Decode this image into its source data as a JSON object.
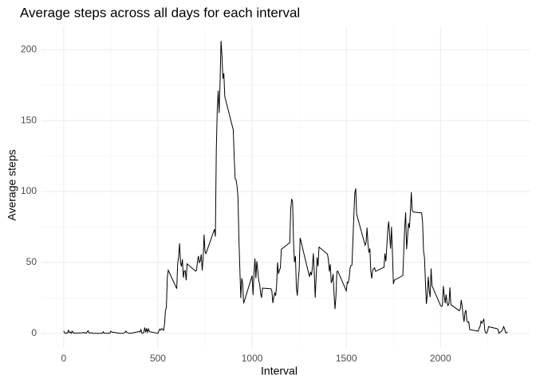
{
  "chart_data": {
    "type": "line",
    "title": "Average steps across all days for each interval",
    "xlabel": "Interval",
    "ylabel": "Average steps",
    "x": [
      0,
      5,
      10,
      15,
      20,
      25,
      30,
      35,
      40,
      45,
      50,
      55,
      100,
      105,
      110,
      115,
      120,
      125,
      130,
      135,
      140,
      145,
      150,
      155,
      200,
      205,
      210,
      215,
      220,
      225,
      230,
      235,
      240,
      245,
      250,
      255,
      300,
      305,
      310,
      315,
      320,
      325,
      330,
      335,
      340,
      345,
      350,
      355,
      400,
      405,
      410,
      415,
      420,
      425,
      430,
      435,
      440,
      445,
      450,
      455,
      500,
      505,
      510,
      515,
      520,
      525,
      530,
      535,
      540,
      545,
      550,
      555,
      600,
      605,
      610,
      615,
      620,
      625,
      630,
      635,
      640,
      645,
      650,
      655,
      700,
      705,
      710,
      715,
      720,
      725,
      730,
      735,
      740,
      745,
      750,
      755,
      800,
      805,
      810,
      815,
      820,
      825,
      830,
      835,
      840,
      845,
      850,
      855,
      900,
      905,
      910,
      915,
      920,
      925,
      930,
      935,
      940,
      945,
      950,
      955,
      1000,
      1005,
      1010,
      1015,
      1020,
      1025,
      1030,
      1035,
      1040,
      1045,
      1050,
      1055,
      1100,
      1105,
      1110,
      1115,
      1120,
      1125,
      1130,
      1135,
      1140,
      1145,
      1150,
      1155,
      1200,
      1205,
      1210,
      1215,
      1220,
      1225,
      1230,
      1235,
      1240,
      1245,
      1250,
      1255,
      1300,
      1305,
      1310,
      1315,
      1320,
      1325,
      1330,
      1335,
      1340,
      1345,
      1350,
      1355,
      1400,
      1405,
      1410,
      1415,
      1420,
      1425,
      1430,
      1435,
      1440,
      1445,
      1450,
      1455,
      1500,
      1505,
      1510,
      1515,
      1520,
      1525,
      1530,
      1535,
      1540,
      1545,
      1550,
      1555,
      1600,
      1605,
      1610,
      1615,
      1620,
      1625,
      1630,
      1635,
      1640,
      1645,
      1650,
      1655,
      1700,
      1705,
      1710,
      1715,
      1720,
      1725,
      1730,
      1735,
      1740,
      1745,
      1750,
      1755,
      1800,
      1805,
      1810,
      1815,
      1820,
      1825,
      1830,
      1835,
      1840,
      1845,
      1850,
      1855,
      1900,
      1905,
      1910,
      1915,
      1920,
      1925,
      1930,
      1935,
      1940,
      1945,
      1950,
      1955,
      2000,
      2005,
      2010,
      2015,
      2020,
      2025,
      2030,
      2035,
      2040,
      2045,
      2050,
      2055,
      2100,
      2105,
      2110,
      2115,
      2120,
      2125,
      2130,
      2135,
      2140,
      2145,
      2150,
      2155,
      2200,
      2205,
      2210,
      2215,
      2220,
      2225,
      2230,
      2235,
      2240,
      2245,
      2250,
      2255,
      2300,
      2305,
      2310,
      2315,
      2320,
      2325,
      2330,
      2335,
      2340,
      2345,
      2350,
      2355
    ],
    "values": [
      1.7,
      0.3,
      0.1,
      0.2,
      0.1,
      2.1,
      0.5,
      0.9,
      0,
      1.5,
      0.3,
      0.1,
      0.3,
      0.7,
      0.2,
      0.3,
      0,
      1.1,
      1.8,
      0.2,
      0.2,
      0.4,
      0.3,
      0,
      0,
      0,
      1.1,
      0,
      0,
      0.1,
      0,
      0.2,
      0,
      0,
      1.5,
      0.9,
      0,
      0,
      0,
      0,
      0.2,
      0.6,
      1.6,
      0.6,
      0.5,
      0.1,
      0,
      0,
      1.2,
      0.9,
      2.6,
      0,
      0.3,
      0.4,
      4.1,
      0.7,
      3.5,
      0.8,
      3.1,
      1.1,
      0,
      1.6,
      3,
      2.2,
      3.3,
      3,
      2.1,
      6.1,
      16,
      18.3,
      39.5,
      44.5,
      31.5,
      49.3,
      53.8,
      63.5,
      50,
      47.1,
      52.2,
      39.3,
      44,
      44.2,
      37.4,
      49,
      43.8,
      44.4,
      50.5,
      54.5,
      49.9,
      51,
      55.7,
      44.3,
      52.3,
      69.5,
      57.8,
      56.2,
      73.4,
      68.2,
      129.4,
      157.5,
      171.2,
      155.4,
      177.3,
      206.2,
      195.9,
      179.6,
      183.4,
      167,
      143.5,
      124,
      109.1,
      108.1,
      103.7,
      95.97,
      66.2,
      45.2,
      24.8,
      38.8,
      35,
      21.1,
      40.6,
      26.98,
      42.4,
      52.7,
      38.9,
      50.8,
      44.3,
      37.4,
      34.7,
      28.3,
      25.1,
      31.9,
      31.4,
      29.7,
      21.3,
      25.5,
      28.4,
      26.5,
      33.4,
      50,
      42,
      44.6,
      46,
      59.2,
      63.9,
      87.7,
      94.8,
      92.8,
      63.4,
      50.2,
      54.5,
      32.4,
      26.5,
      37.7,
      45.1,
      67.3,
      42.3,
      39.9,
      43.3,
      40.98,
      46.2,
      56.4,
      42.8,
      25.1,
      40,
      53.5,
      47.3,
      60.8,
      55.8,
      51.96,
      43.6,
      48.7,
      35.5,
      37.5,
      41.8,
      27.5,
      17.1,
      26.1,
      43.6,
      43.8,
      30,
      36.1,
      35.5,
      38.8,
      45.96,
      47.8,
      48.1,
      65.3,
      82.9,
      98.7,
      102.1,
      83.96,
      62.1,
      64.1,
      74.5,
      63.2,
      56.9,
      59.8,
      43.9,
      38.6,
      44.7,
      45.5,
      46.2,
      43.7,
      46.6,
      56.3,
      50.7,
      61.2,
      72.7,
      78.9,
      68.9,
      59.7,
      75.1,
      56.5,
      34.8,
      37.5,
      40.7,
      58,
      74.7,
      85.3,
      59.3,
      67.8,
      77.7,
      74.2,
      85.3,
      99.5,
      86.6,
      85.6,
      84.9,
      77.8,
      58,
      53.4,
      36.3,
      20.7,
      27.4,
      40,
      30.2,
      25.5,
      45.7,
      33.5,
      19.6,
      19,
      19.3,
      33.3,
      26.8,
      21.2,
      27.3,
      21.3,
      19.5,
      21.3,
      32.3,
      20.2,
      15.9,
      17.2,
      23.5,
      19.2,
      12.5,
      8,
      14.7,
      16.3,
      8.7,
      7.8,
      8.1,
      2.6,
      1.5,
      3.7,
      4.8,
      8.5,
      7.1,
      8.7,
      9.8,
      2.2,
      0.3,
      0.1,
      1.6,
      4.6,
      3.3,
      2.8,
      0,
      0.8,
      0.96,
      1.6,
      2.6,
      4.7,
      3.3,
      0.6,
      0.2,
      1.1
    ],
    "color": "#000000",
    "xlim": [
      -118,
      2473
    ],
    "ylim": [
      -10.3,
      216.5
    ],
    "xticks": [
      0,
      500,
      1000,
      1500,
      2000
    ],
    "yticks": [
      0,
      50,
      100,
      150,
      200
    ],
    "xminor": [
      250,
      750,
      1250,
      1750,
      2250
    ],
    "yminor": [
      25,
      75,
      125,
      175
    ],
    "grid": true
  }
}
